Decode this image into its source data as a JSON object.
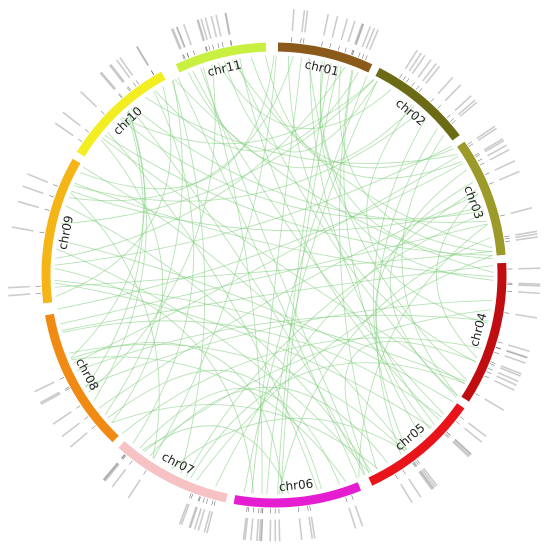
{
  "chromosomes": [
    {
      "label": "chr01",
      "color": "#8b5a1a"
    },
    {
      "label": "chr02",
      "color": "#6b6b16"
    },
    {
      "label": "chr03",
      "color": "#9c9a28"
    },
    {
      "label": "chr04",
      "color": "#c00d12"
    },
    {
      "label": "chr05",
      "color": "#e8141a"
    },
    {
      "label": "chr06",
      "color": "#e41ed0"
    },
    {
      "label": "chr07",
      "color": "#f6c2c4"
    },
    {
      "label": "chr08",
      "color": "#f08a12"
    },
    {
      "label": "chr09",
      "color": "#f5b516"
    },
    {
      "label": "chr10",
      "color": "#f2ee22"
    },
    {
      "label": "chr11",
      "color": "#c8f040"
    }
  ]
}
